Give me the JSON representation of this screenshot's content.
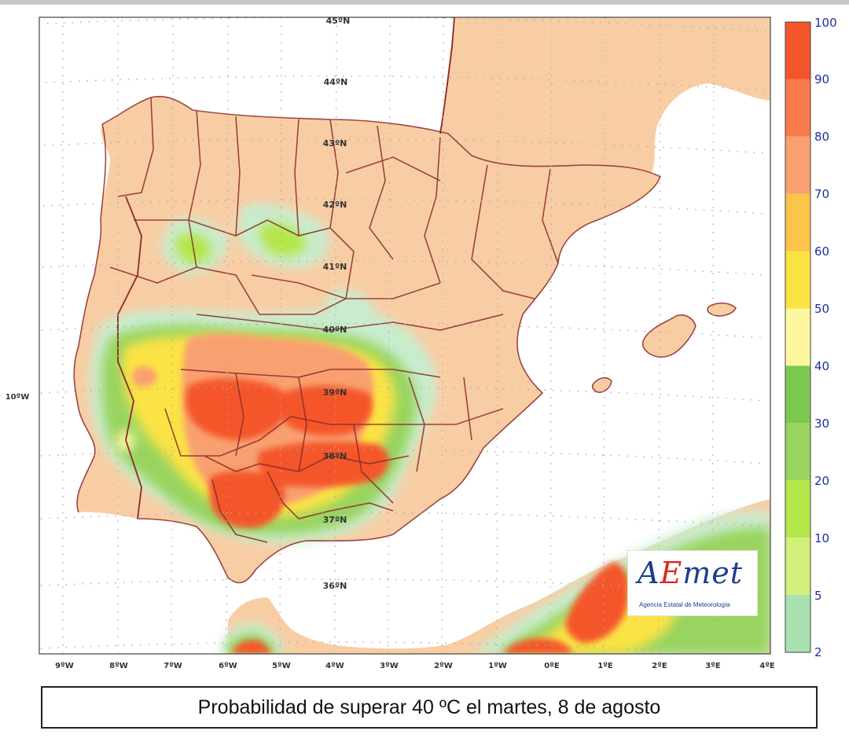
{
  "caption": "Probabilidad de superar 40 ºC el martes, 8 de agosto",
  "logo": {
    "wordmark_prefix": "A",
    "wordmark_e": "E",
    "wordmark_suffix": "met",
    "subtitle": "Agencia Estatal de Meteorología"
  },
  "lat_labels": [
    "45ºN",
    "44ºN",
    "43ºN",
    "42ºN",
    "41ºN",
    "40ºN",
    "39ºN",
    "38ºN",
    "37ºN",
    "36ºN"
  ],
  "lon_labels": [
    "9ºW",
    "8ºW",
    "7ºW",
    "6ºW",
    "5ºW",
    "4ºW",
    "3ºW",
    "2ºW",
    "1ºW",
    "0ºE",
    "1ºE",
    "2ºE",
    "3ºE",
    "4ºE"
  ],
  "side_label": "10ºW",
  "legend": {
    "ticks": [
      "100",
      "90",
      "80",
      "70",
      "60",
      "50",
      "40",
      "30",
      "20",
      "10",
      "5",
      "2"
    ],
    "colors": [
      "#f4562c",
      "#f77a4a",
      "#f9a070",
      "#fbc44a",
      "#fbe344",
      "#fdf8a0",
      "#7cc850",
      "#98d45e",
      "#b4e64a",
      "#d2f07a",
      "#a8e0b0",
      "#c6eed0"
    ]
  },
  "colors": {
    "land": "#f9cda4",
    "sea": "#ffffff",
    "border": "#8a2a2a"
  }
}
